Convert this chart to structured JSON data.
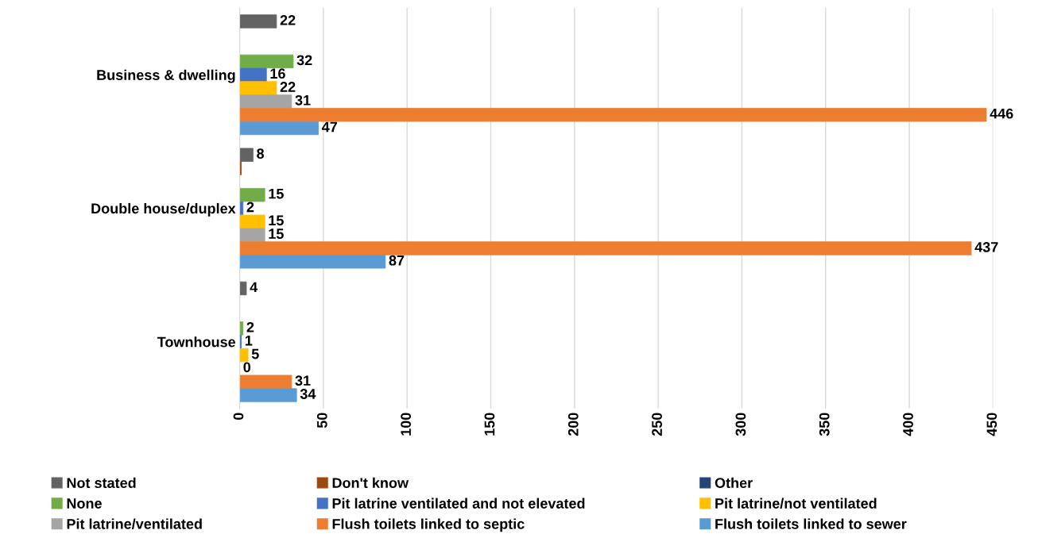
{
  "chart_data": {
    "type": "bar",
    "orientation": "horizontal",
    "categories": [
      "Business & dwelling",
      "Double house/duplex",
      "Townhouse"
    ],
    "series": [
      {
        "name": "Not stated",
        "color": "#636363",
        "values": [
          22,
          8,
          4
        ],
        "value_labels": [
          "22",
          "8",
          "4"
        ]
      },
      {
        "name": "Don't know",
        "color": "#9e480e",
        "values": [
          null,
          1,
          null
        ],
        "value_labels": [
          null,
          null,
          null
        ]
      },
      {
        "name": "Other",
        "color": "#264478",
        "values": [
          null,
          null,
          null
        ],
        "value_labels": [
          null,
          null,
          null
        ]
      },
      {
        "name": "None",
        "color": "#70ad47",
        "values": [
          32,
          15,
          2
        ],
        "value_labels": [
          "32",
          "15",
          "2"
        ]
      },
      {
        "name": "Pit latrine ventilated and not elevated",
        "color": "#4472c4",
        "values": [
          16,
          2,
          1
        ],
        "value_labels": [
          "16",
          "2",
          "1"
        ]
      },
      {
        "name": "Pit latrine/not ventilated",
        "color": "#ffc000",
        "values": [
          22,
          15,
          5
        ],
        "value_labels": [
          "22",
          "15",
          "5"
        ]
      },
      {
        "name": "Pit latrine/ventilated",
        "color": "#a5a5a5",
        "values": [
          31,
          15,
          0
        ],
        "value_labels": [
          "31",
          "15",
          "0"
        ]
      },
      {
        "name": "Flush toilets linked to septic",
        "color": "#ed7d31",
        "values": [
          446,
          437,
          31
        ],
        "value_labels": [
          "446",
          "437",
          "31"
        ]
      },
      {
        "name": "Flush toilets linked to sewer",
        "color": "#5b9bd5",
        "values": [
          47,
          87,
          34
        ],
        "value_labels": [
          "47",
          "87",
          "34"
        ]
      }
    ],
    "xlim": [
      0,
      450
    ],
    "xticks": [
      0,
      50,
      100,
      150,
      200,
      250,
      300,
      350,
      400,
      450
    ],
    "grid": "x",
    "legend": "bottom"
  }
}
